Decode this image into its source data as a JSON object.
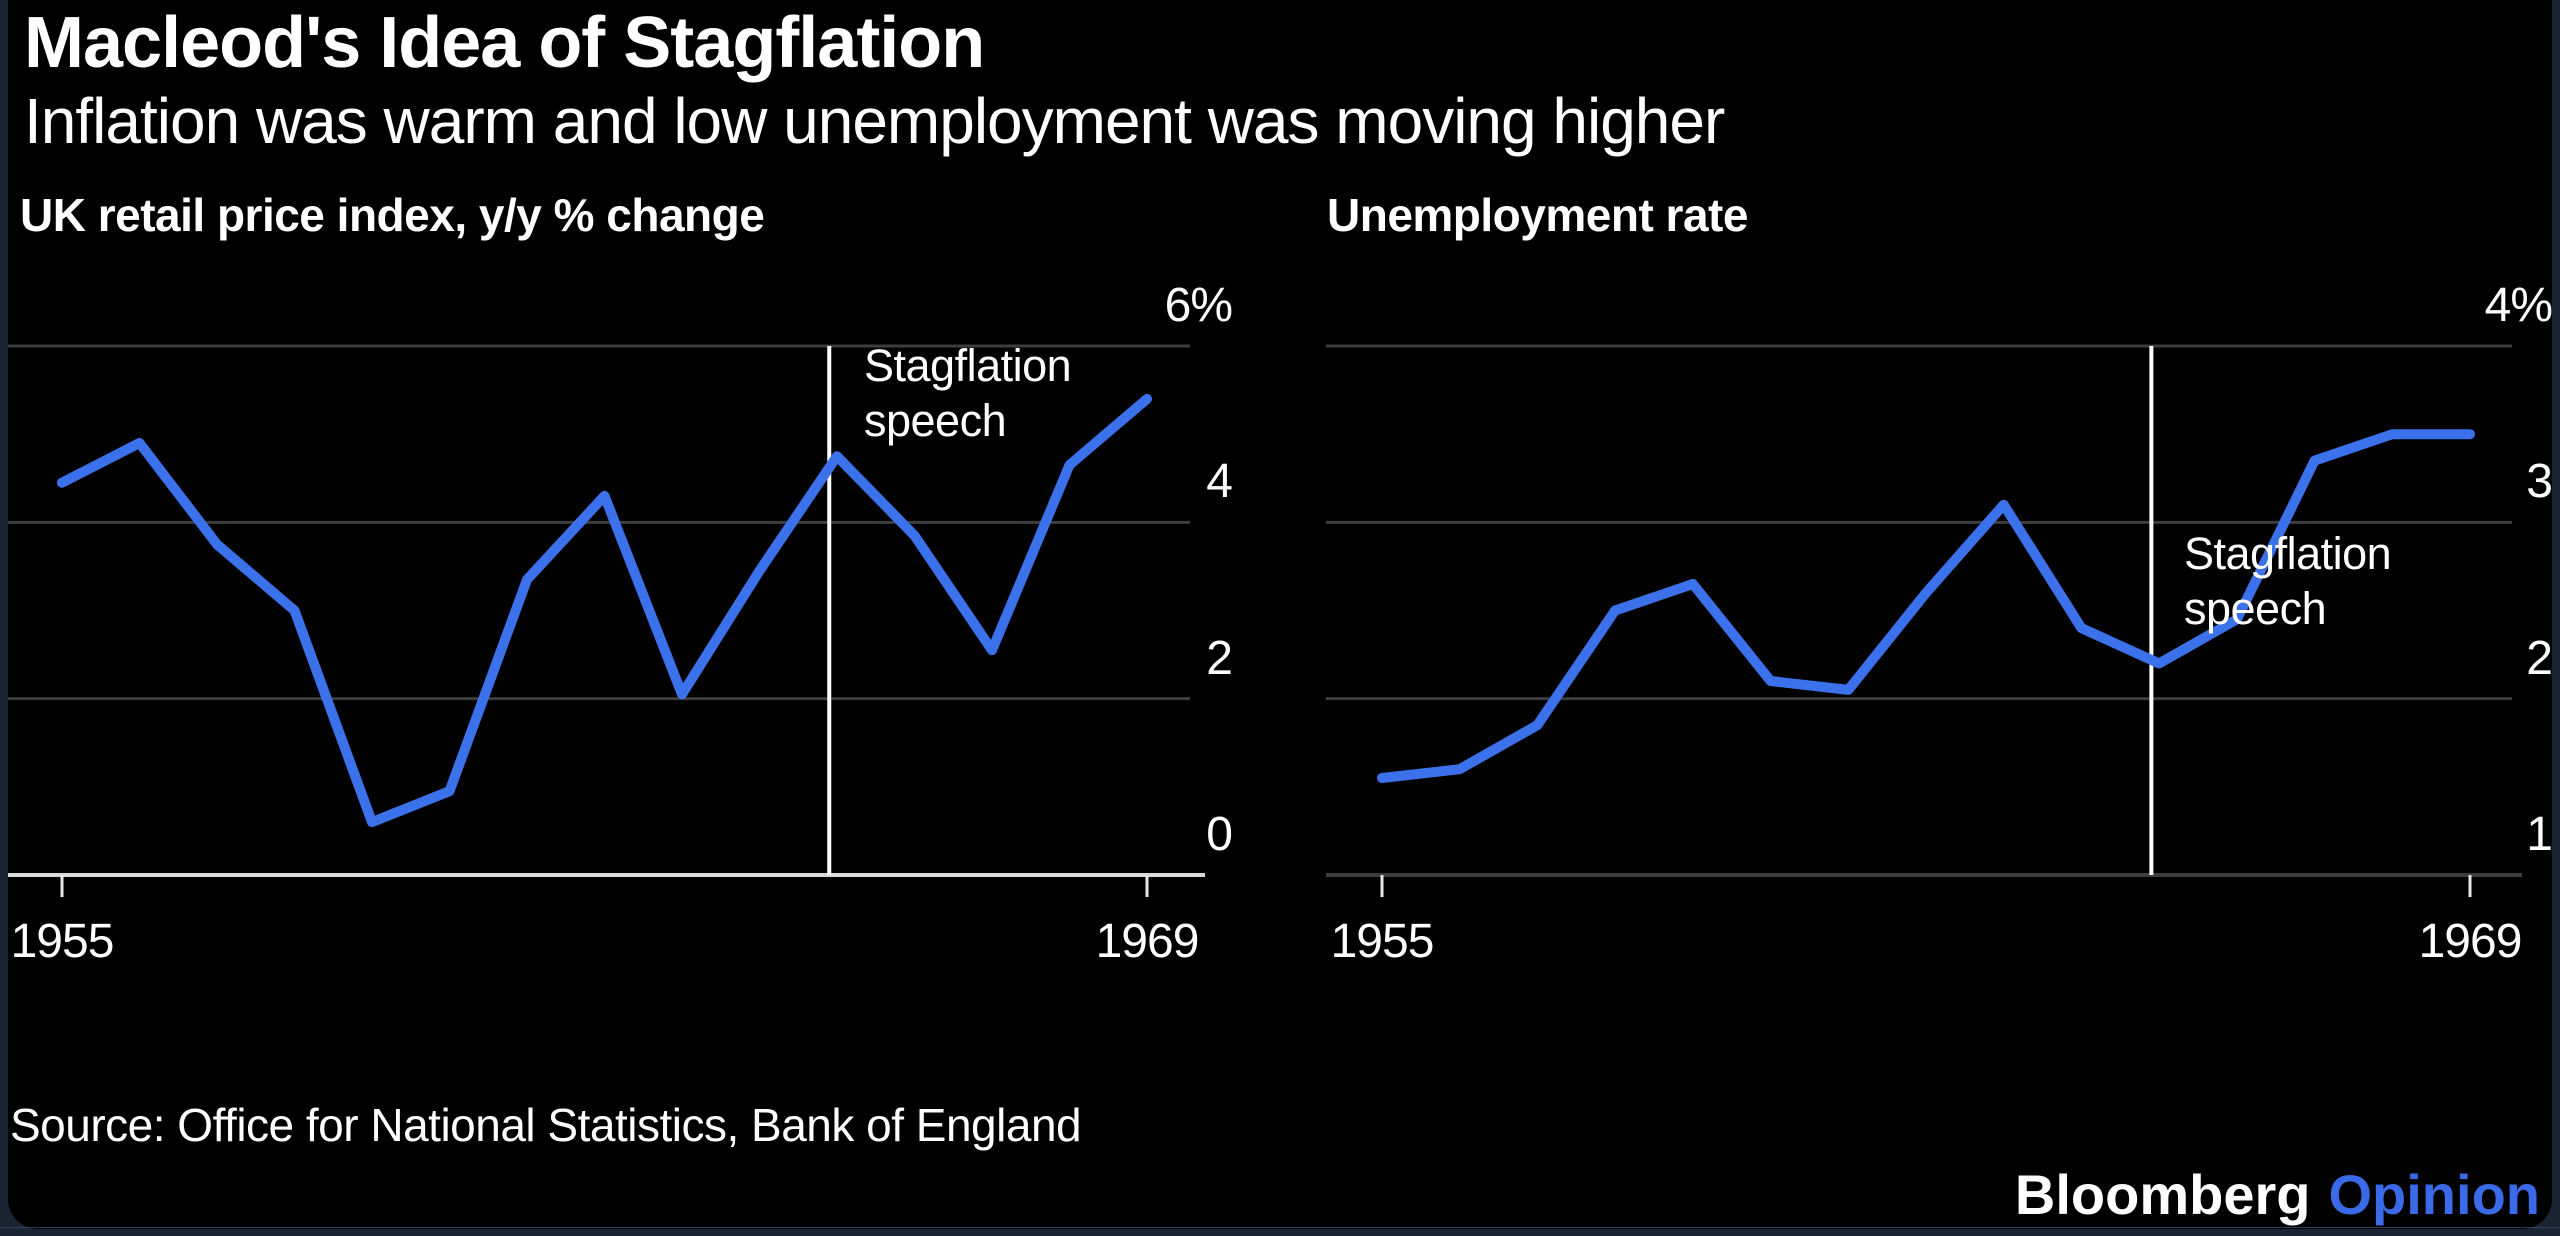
{
  "header": {
    "title": "Macleod's Idea of Stagflation",
    "subtitle": "Inflation was warm and low unemployment was moving higher"
  },
  "chart_data": [
    {
      "type": "line",
      "title": "UK retail price index, y/y % change",
      "x": [
        1955,
        1956,
        1957,
        1958,
        1959,
        1960,
        1961,
        1962,
        1963,
        1964,
        1965,
        1966,
        1967,
        1968,
        1969
      ],
      "values": [
        4.45,
        4.9,
        3.75,
        3.0,
        0.6,
        0.95,
        3.35,
        4.3,
        2.05,
        3.45,
        4.75,
        3.85,
        2.55,
        4.65,
        5.4
      ],
      "ylim": [
        0,
        6
      ],
      "yticks": [
        {
          "value": 6,
          "label": "6%"
        },
        {
          "value": 4,
          "label": "4"
        },
        {
          "value": 2,
          "label": "2"
        },
        {
          "value": 0,
          "label": "0"
        }
      ],
      "xticks": [
        {
          "value": 1955,
          "label": "1955"
        },
        {
          "value": 1969,
          "label": "1969"
        }
      ],
      "annotation": {
        "x": 1964.9,
        "lines": [
          "Stagflation",
          "speech"
        ]
      },
      "zero_baseline": true,
      "grid": "horizontal",
      "legend": "none"
    },
    {
      "type": "line",
      "title": "Unemployment rate",
      "x": [
        1955,
        1956,
        1957,
        1958,
        1959,
        1960,
        1961,
        1962,
        1963,
        1964,
        1965,
        1966,
        1967,
        1968,
        1969
      ],
      "values": [
        1.55,
        1.6,
        1.85,
        2.5,
        2.65,
        2.1,
        2.05,
        2.6,
        3.1,
        2.4,
        2.2,
        2.45,
        3.35,
        3.5,
        3.5
      ],
      "ylim": [
        1,
        4
      ],
      "yticks": [
        {
          "value": 4,
          "label": "4%"
        },
        {
          "value": 3,
          "label": "3"
        },
        {
          "value": 2,
          "label": "2"
        },
        {
          "value": 1,
          "label": "1"
        }
      ],
      "xticks": [
        {
          "value": 1955,
          "label": "1955"
        },
        {
          "value": 1969,
          "label": "1969"
        }
      ],
      "annotation": {
        "x": 1964.9,
        "lines": [
          "Stagflation",
          "speech"
        ]
      },
      "zero_baseline": false,
      "grid": "horizontal",
      "legend": "none"
    }
  ],
  "footer": {
    "source": "Source: Office for National Statistics, Bank of England",
    "brand_white": "Bloomberg",
    "brand_blue": "Opinion"
  },
  "colors": {
    "series_line": "#3b72eb",
    "gridline": "#3d3d3d",
    "zero_baseline": "#d9d9d9",
    "annotation_line": "#ffffff",
    "tick": "#e8e8e8",
    "text": "#ffffff",
    "opinion_blue": "#3b6ae8",
    "card_background": "#000000",
    "page_background": "#1b2433"
  }
}
